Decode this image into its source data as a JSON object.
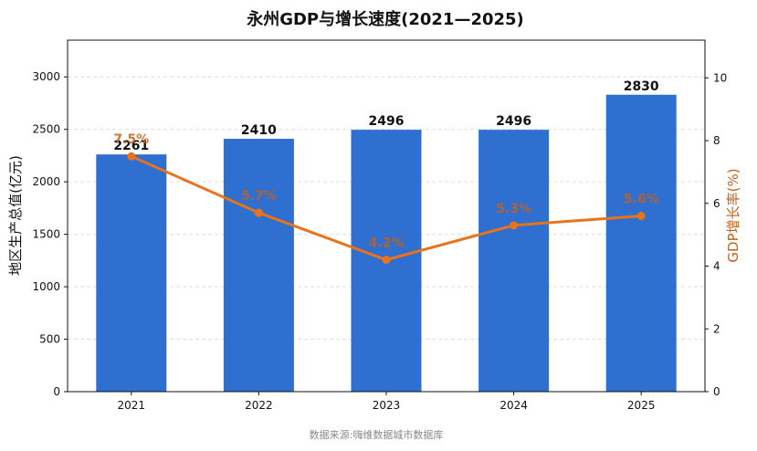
{
  "chart_data": {
    "type": "bar",
    "title": "永州GDP与增长速度(2021—2025)",
    "categories": [
      "2021",
      "2022",
      "2023",
      "2024",
      "2025"
    ],
    "series": [
      {
        "name": "地区生产总值(亿元)",
        "type": "bar",
        "axis": "left",
        "values": [
          2261,
          2410,
          2496,
          2496,
          2830
        ]
      },
      {
        "name": "GDP增长率(%)",
        "type": "line",
        "axis": "right",
        "values": [
          7.5,
          5.7,
          4.2,
          5.3,
          5.6
        ]
      }
    ],
    "ylabel": "地区生产总值(亿元)",
    "y2label": "GDP增长率(%)",
    "ylim": [
      0,
      3350
    ],
    "y2lim": [
      0,
      11.2
    ],
    "yticks": [
      0,
      500,
      1000,
      1500,
      2000,
      2500,
      3000
    ],
    "y2ticks": [
      0,
      2,
      4,
      6,
      8,
      10
    ],
    "bar_labels": [
      "2261",
      "2410",
      "2496",
      "2496",
      "2830"
    ],
    "line_labels": [
      "7.5%",
      "5.7%",
      "4.2%",
      "5.3%",
      "5.6%"
    ],
    "grid": true,
    "colors": {
      "bar": "#2f6fd0",
      "line": "#e8731a",
      "line_label": "#c4611a",
      "right_axis_label": "#c4611a",
      "grid": "#dddddd",
      "source": "#888888"
    }
  },
  "source_note": "数据来源:嗨维数据城市数据库"
}
